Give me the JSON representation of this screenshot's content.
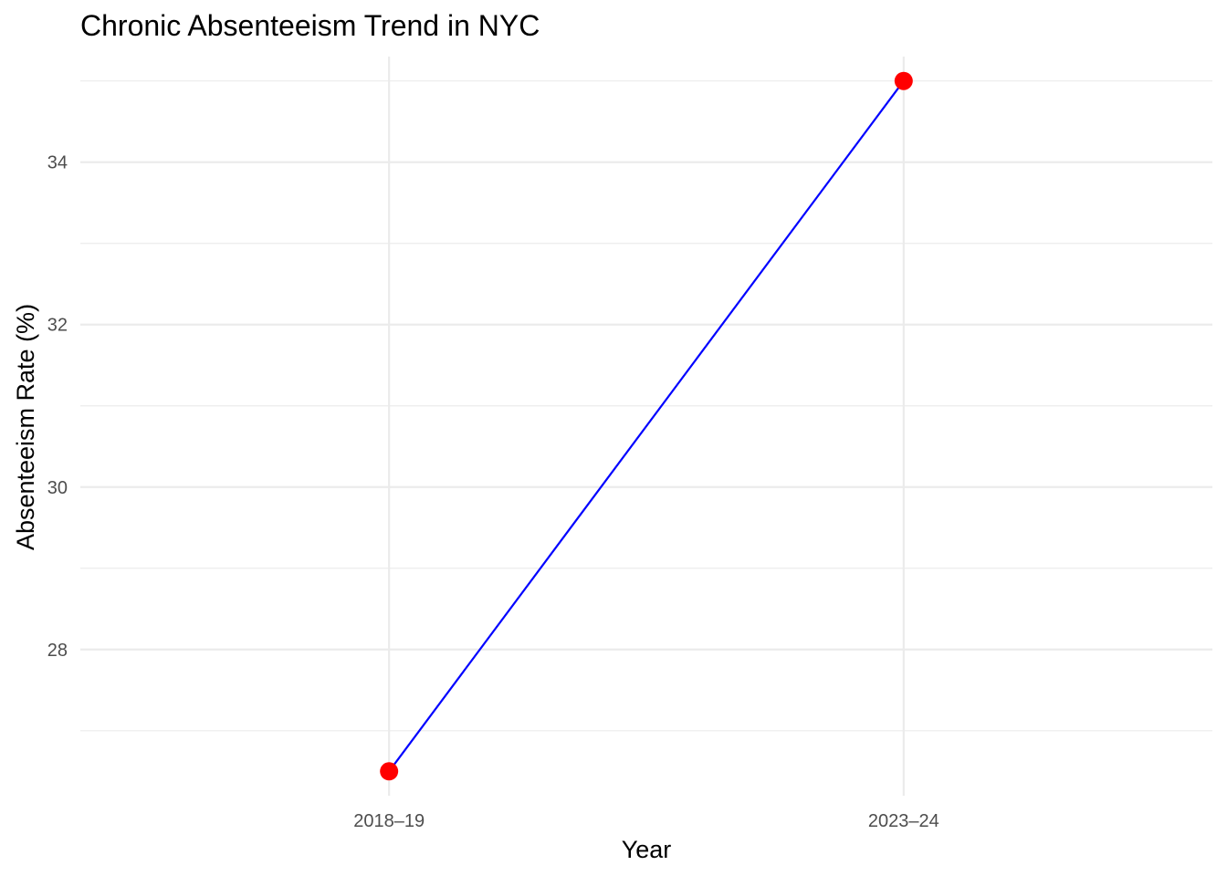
{
  "chart_data": {
    "type": "line",
    "title": "Chronic Absenteeism Trend in NYC",
    "xlabel": "Year",
    "ylabel": "Absenteeism Rate (%)",
    "categories": [
      "2018–19",
      "2023–24"
    ],
    "series": [
      {
        "values": [
          26.5,
          35.0
        ]
      }
    ],
    "yticks": [
      28,
      30,
      32,
      34
    ],
    "ylim": [
      26.2,
      35.3
    ],
    "grid": true,
    "legend": "none",
    "colors": {
      "line": "#0000ff",
      "points": "#ff0000",
      "grid_major": "#ebebeb",
      "grid_minor": "#ebebeb",
      "tick_text": "#4d4d4d"
    }
  }
}
